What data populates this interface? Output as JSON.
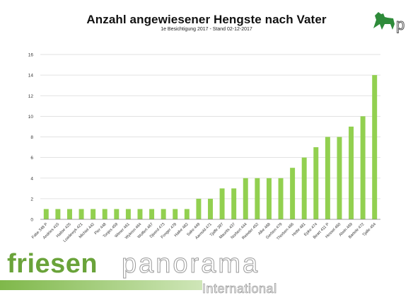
{
  "title": "Anzahl angewiesener Hengste nach Vater",
  "subtitle": "1e Besichtigung 2017 - Stand 02-12-2017",
  "brand": {
    "strong": "friesen",
    "light": "panorama",
    "sub": "International"
  },
  "colors": {
    "bar": "#92d050",
    "grid": "#d9d9d9",
    "axis": "#7f7f7f",
    "text": "#333333",
    "brand_green": "#6aa33a",
    "logo_green": "#2e8b3a"
  },
  "logo": {
    "icon": "friesian-horse-logo-icon",
    "letter": "p"
  },
  "chart_data": {
    "type": "bar",
    "title": "Anzahl angewiesener Hengste nach Vater",
    "subtitle": "1e Besichtigung 2017 - Stand 02-12-2017",
    "xlabel": "",
    "ylabel": "",
    "ylim": [
      0,
      16
    ],
    "yticks": [
      0,
      2,
      4,
      6,
      8,
      10,
      12,
      14,
      16
    ],
    "grid": true,
    "legend": "none",
    "categories": [
      "Fabe 348 P",
      "Andries 415",
      "Haitse 425",
      "Loadewyk 421",
      "Michiel 442",
      "Pier 448",
      "Tonjes 459",
      "Wimer 461",
      "Wykren 464",
      "Wolfert 467",
      "Djoerd 473",
      "Fonger 478",
      "Haike 482",
      "Sake 449",
      "Aarnold 471",
      "Tjalfe 397",
      "Maurits 437",
      "Norbert 444",
      "Reinder 452",
      "Alke 468",
      "Gerben 479",
      "Thorben 466",
      "Hette 481",
      "Epke 474",
      "Beart 411 P",
      "Hessel 460",
      "Alwin 469",
      "Bartele 472",
      "Tjalle 454"
    ],
    "values": [
      1,
      1,
      1,
      1,
      1,
      1,
      1,
      1,
      1,
      1,
      1,
      1,
      1,
      2,
      2,
      3,
      3,
      4,
      4,
      4,
      4,
      5,
      6,
      7,
      8,
      8,
      9,
      10,
      14
    ]
  }
}
